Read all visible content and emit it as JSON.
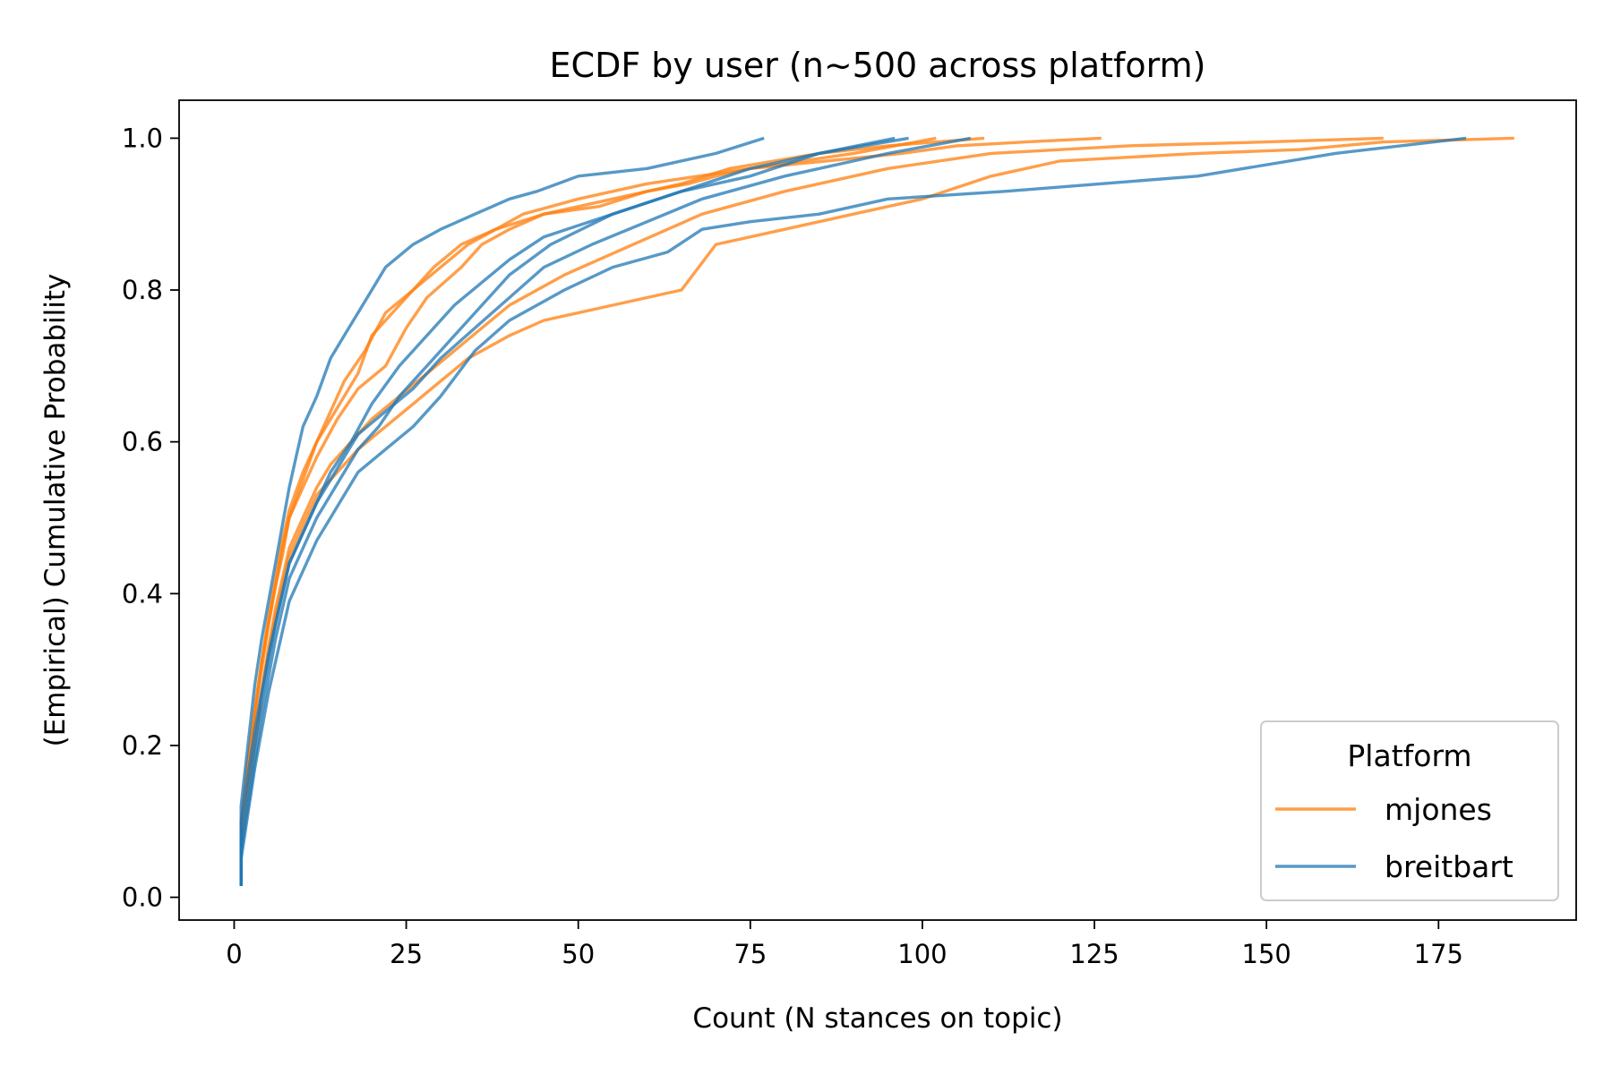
{
  "chart_data": {
    "type": "line",
    "title": "ECDF by user (n~500 across platform)",
    "xlabel": "Count (N stances on topic)",
    "ylabel": "(Empirical) Cumulative Probability",
    "xlim": [
      -8,
      195
    ],
    "ylim": [
      -0.03,
      1.05
    ],
    "xticks": [
      0,
      25,
      50,
      75,
      100,
      125,
      150,
      175
    ],
    "yticks": [
      0.0,
      0.2,
      0.4,
      0.6,
      0.8,
      1.0
    ],
    "xtick_labels": [
      "0",
      "25",
      "50",
      "75",
      "100",
      "125",
      "150",
      "175"
    ],
    "ytick_labels": [
      "0.0",
      "0.2",
      "0.4",
      "0.6",
      "0.8",
      "1.0"
    ],
    "grid": false,
    "legend": {
      "title": "Platform",
      "position": "lower-right",
      "entries": [
        {
          "label": "mjones",
          "color": "#ff7f0e"
        },
        {
          "label": "breitbart",
          "color": "#1f77b4"
        }
      ]
    },
    "colors": {
      "mjones": "#ff7f0e",
      "breitbart": "#1f77b4"
    },
    "series": [
      {
        "group": "mjones",
        "x": [
          1,
          2,
          3,
          4,
          5,
          6,
          7,
          8,
          10,
          12,
          14,
          16,
          18,
          20,
          23,
          26,
          29,
          33,
          38,
          45,
          53,
          60,
          66,
          70,
          75,
          86,
          97,
          105,
          115,
          126
        ],
        "y": [
          0.08,
          0.16,
          0.24,
          0.31,
          0.37,
          0.42,
          0.47,
          0.51,
          0.56,
          0.6,
          0.63,
          0.66,
          0.69,
          0.74,
          0.77,
          0.8,
          0.83,
          0.86,
          0.88,
          0.9,
          0.91,
          0.93,
          0.94,
          0.95,
          0.96,
          0.97,
          0.98,
          0.99,
          0.995,
          1.0
        ]
      },
      {
        "group": "mjones",
        "x": [
          1,
          2,
          3,
          4,
          5,
          6,
          7,
          8,
          10,
          12,
          15,
          18,
          22,
          25,
          28,
          33,
          36,
          40,
          45,
          55,
          65,
          72,
          85,
          95,
          109
        ],
        "y": [
          0.1,
          0.18,
          0.25,
          0.31,
          0.36,
          0.41,
          0.45,
          0.5,
          0.54,
          0.58,
          0.63,
          0.67,
          0.7,
          0.75,
          0.79,
          0.83,
          0.86,
          0.88,
          0.9,
          0.92,
          0.94,
          0.96,
          0.98,
          0.99,
          1.0
        ]
      },
      {
        "group": "mjones",
        "x": [
          1,
          2,
          3,
          4,
          5,
          6,
          7,
          8,
          10,
          12,
          14,
          17,
          20,
          24,
          28,
          32,
          36,
          40,
          48,
          58,
          68,
          80,
          95,
          110,
          130,
          150,
          167
        ],
        "y": [
          0.07,
          0.14,
          0.2,
          0.27,
          0.33,
          0.38,
          0.42,
          0.46,
          0.5,
          0.54,
          0.57,
          0.6,
          0.63,
          0.66,
          0.69,
          0.72,
          0.75,
          0.78,
          0.82,
          0.86,
          0.9,
          0.93,
          0.96,
          0.98,
          0.99,
          0.995,
          1.0
        ]
      },
      {
        "group": "mjones",
        "x": [
          1,
          2,
          3,
          4,
          5,
          6,
          7,
          8,
          10,
          12,
          14,
          16,
          19,
          22,
          26,
          30,
          34,
          38,
          42,
          50,
          60,
          75,
          90,
          102
        ],
        "y": [
          0.09,
          0.17,
          0.24,
          0.3,
          0.36,
          0.41,
          0.46,
          0.5,
          0.55,
          0.6,
          0.64,
          0.68,
          0.72,
          0.77,
          0.8,
          0.83,
          0.86,
          0.88,
          0.9,
          0.92,
          0.94,
          0.96,
          0.98,
          1.0
        ]
      },
      {
        "group": "mjones",
        "x": [
          1,
          2,
          3,
          4,
          5,
          6,
          7,
          8,
          10,
          12,
          15,
          18,
          22,
          26,
          30,
          34,
          40,
          45,
          55,
          65,
          70,
          80,
          90,
          100,
          110,
          120,
          140,
          155,
          167,
          186
        ],
        "y": [
          0.08,
          0.15,
          0.21,
          0.27,
          0.32,
          0.37,
          0.41,
          0.45,
          0.49,
          0.53,
          0.56,
          0.59,
          0.62,
          0.65,
          0.68,
          0.71,
          0.74,
          0.76,
          0.78,
          0.8,
          0.86,
          0.88,
          0.9,
          0.92,
          0.95,
          0.97,
          0.98,
          0.985,
          0.995,
          1.0
        ]
      },
      {
        "group": "breitbart",
        "x": [
          1,
          2,
          3,
          4,
          5,
          6,
          7,
          8,
          9,
          10,
          12,
          14,
          16,
          18,
          20,
          22,
          26,
          30,
          35,
          40,
          44,
          50,
          60,
          70,
          77
        ],
        "y": [
          0.12,
          0.2,
          0.28,
          0.34,
          0.39,
          0.44,
          0.49,
          0.54,
          0.58,
          0.62,
          0.66,
          0.71,
          0.74,
          0.77,
          0.8,
          0.83,
          0.86,
          0.88,
          0.9,
          0.92,
          0.93,
          0.95,
          0.96,
          0.98,
          1.0
        ]
      },
      {
        "group": "breitbart",
        "x": [
          1,
          2,
          3,
          4,
          5,
          6,
          7,
          8,
          10,
          12,
          14,
          16,
          18,
          21,
          24,
          28,
          32,
          36,
          40,
          46,
          55,
          65,
          75,
          85,
          96
        ],
        "y": [
          0.06,
          0.12,
          0.18,
          0.24,
          0.29,
          0.34,
          0.38,
          0.42,
          0.46,
          0.5,
          0.53,
          0.56,
          0.59,
          0.62,
          0.66,
          0.7,
          0.74,
          0.78,
          0.82,
          0.86,
          0.9,
          0.93,
          0.96,
          0.98,
          1.0
        ]
      },
      {
        "group": "breitbart",
        "x": [
          1,
          2,
          3,
          4,
          5,
          6,
          7,
          8,
          10,
          12,
          14,
          17,
          20,
          24,
          28,
          32,
          36,
          40,
          45,
          55,
          65,
          75,
          85,
          98
        ],
        "y": [
          0.08,
          0.14,
          0.2,
          0.26,
          0.31,
          0.36,
          0.4,
          0.44,
          0.48,
          0.52,
          0.56,
          0.6,
          0.65,
          0.7,
          0.74,
          0.78,
          0.81,
          0.84,
          0.87,
          0.9,
          0.93,
          0.95,
          0.98,
          1.0
        ]
      },
      {
        "group": "breitbart",
        "x": [
          1,
          2,
          3,
          4,
          5,
          6,
          7,
          8,
          10,
          12,
          14,
          16,
          18,
          22,
          26,
          30,
          35,
          40,
          45,
          52,
          60,
          68,
          80,
          95,
          107
        ],
        "y": [
          0.1,
          0.16,
          0.22,
          0.27,
          0.32,
          0.36,
          0.4,
          0.44,
          0.48,
          0.52,
          0.55,
          0.58,
          0.61,
          0.64,
          0.67,
          0.71,
          0.75,
          0.79,
          0.83,
          0.86,
          0.89,
          0.92,
          0.95,
          0.98,
          1.0
        ]
      },
      {
        "group": "breitbart",
        "x": [
          1,
          2,
          3,
          4,
          5,
          6,
          7,
          8,
          10,
          12,
          14,
          16,
          18,
          22,
          26,
          30,
          35,
          40,
          48,
          55,
          63,
          68,
          75,
          85,
          95,
          112,
          140,
          160,
          179
        ],
        "y": [
          0.05,
          0.11,
          0.17,
          0.22,
          0.27,
          0.31,
          0.35,
          0.39,
          0.43,
          0.47,
          0.5,
          0.53,
          0.56,
          0.59,
          0.62,
          0.66,
          0.72,
          0.76,
          0.8,
          0.83,
          0.85,
          0.88,
          0.89,
          0.9,
          0.92,
          0.93,
          0.95,
          0.98,
          1.0
        ]
      }
    ]
  }
}
